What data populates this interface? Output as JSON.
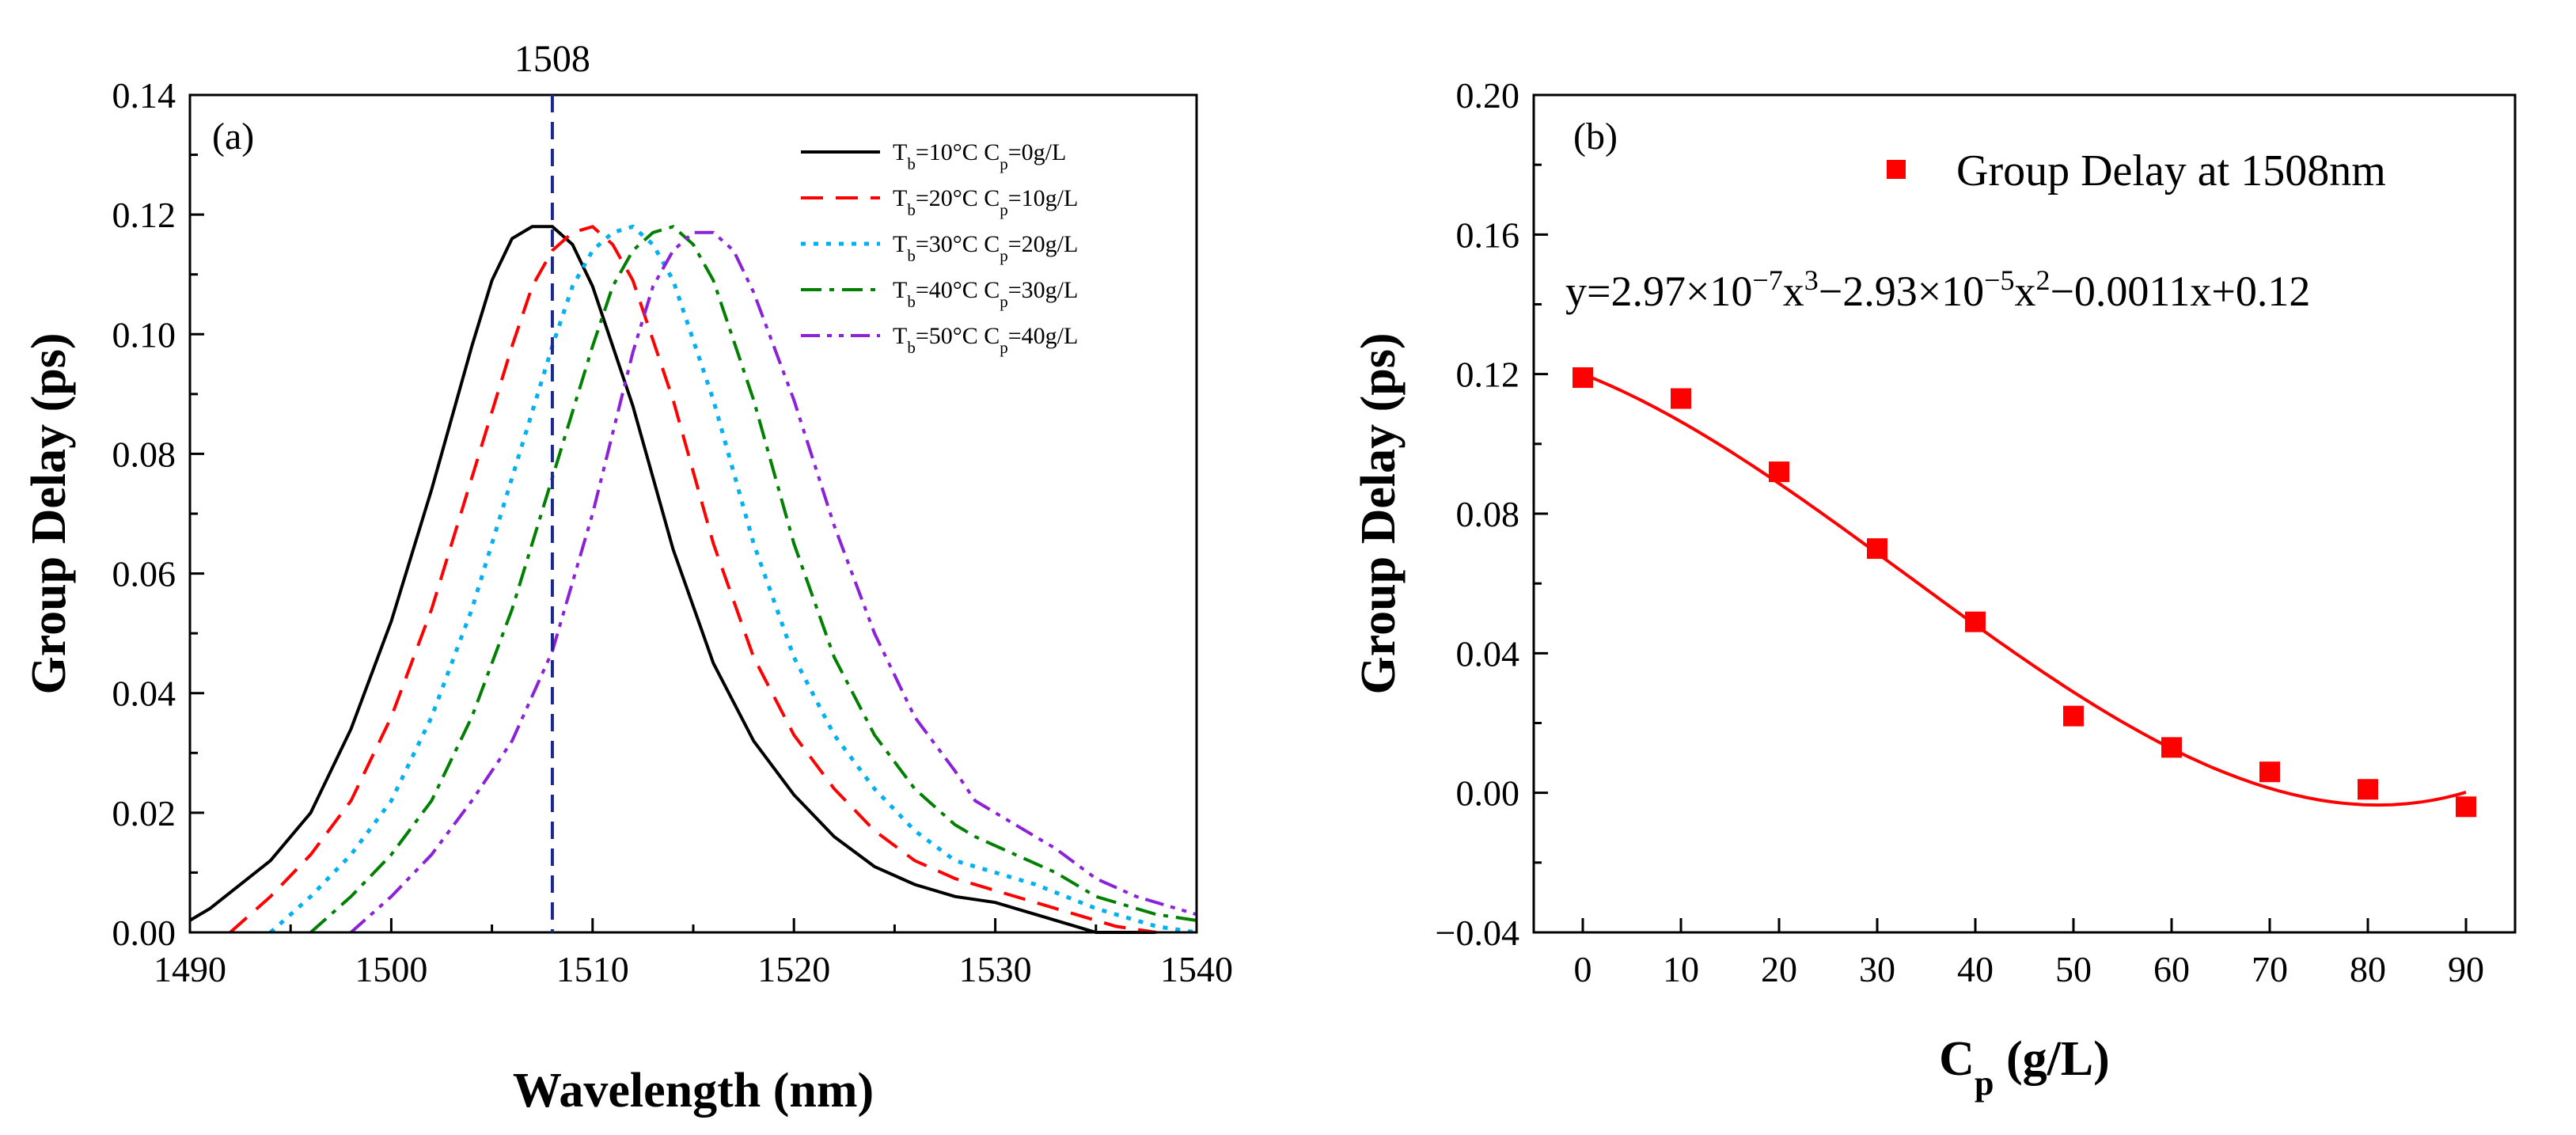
{
  "chart_data": [
    {
      "panel_label": "(a)",
      "type": "line",
      "xlabel": "Wavelength (nm)",
      "ylabel": "Group Delay (ps)",
      "xlim": [
        1490,
        1540
      ],
      "ylim": [
        0,
        0.14
      ],
      "xticks": [
        "1490",
        "1500",
        "1510",
        "1520",
        "1530",
        "1540"
      ],
      "yticks": [
        "0.00",
        "0.02",
        "0.04",
        "0.06",
        "0.08",
        "0.10",
        "0.12",
        "0.14"
      ],
      "annotation": {
        "label": "1508",
        "x": 1508
      },
      "legend_position": "top-right",
      "series": [
        {
          "name": "Tb=10°C  Cp=0g/L",
          "name_parts": [
            "T",
            "b",
            "=10°C  C",
            "p",
            "=0g/L"
          ],
          "color": "#000000",
          "dash": "solid",
          "x": [
            1490,
            1491,
            1494,
            1496,
            1498,
            1500,
            1502,
            1504,
            1505,
            1506,
            1507,
            1508,
            1509,
            1510,
            1512,
            1514,
            1516,
            1518,
            1520,
            1522,
            1524,
            1526,
            1528,
            1530,
            1532,
            1535,
            1538
          ],
          "y": [
            0.002,
            0.004,
            0.012,
            0.02,
            0.034,
            0.052,
            0.074,
            0.098,
            0.109,
            0.116,
            0.118,
            0.118,
            0.115,
            0.108,
            0.088,
            0.064,
            0.045,
            0.032,
            0.023,
            0.016,
            0.011,
            0.008,
            0.006,
            0.005,
            0.003,
            0.0,
            0.0
          ]
        },
        {
          "name": "Tb=20°C  Cp=10g/L",
          "name_parts": [
            "T",
            "b",
            "=20°C  C",
            "p",
            "=10g/L"
          ],
          "color": "#ff0000",
          "dash": "long-dash",
          "x": [
            1492,
            1494,
            1496,
            1498,
            1500,
            1502,
            1504,
            1506,
            1507,
            1508,
            1509,
            1510,
            1511,
            1512,
            1514,
            1516,
            1518,
            1520,
            1522,
            1524,
            1526,
            1528,
            1530,
            1533,
            1536,
            1538
          ],
          "y": [
            0.0,
            0.006,
            0.013,
            0.022,
            0.036,
            0.054,
            0.076,
            0.098,
            0.108,
            0.114,
            0.117,
            0.118,
            0.115,
            0.109,
            0.089,
            0.065,
            0.046,
            0.033,
            0.024,
            0.017,
            0.012,
            0.009,
            0.007,
            0.004,
            0.001,
            0.0
          ]
        },
        {
          "name": "Tb=30°C  Cp=20g/L",
          "name_parts": [
            "T",
            "b",
            "=30°C  C",
            "p",
            "=20g/L"
          ],
          "color": "#00b0f0",
          "dash": "dotted",
          "x": [
            1494,
            1496,
            1498,
            1500,
            1502,
            1504,
            1506,
            1508,
            1509,
            1510,
            1511,
            1512,
            1513,
            1514,
            1516,
            1518,
            1520,
            1522,
            1524,
            1526,
            1528,
            1530,
            1532,
            1535,
            1538,
            1540
          ],
          "y": [
            0.0,
            0.006,
            0.013,
            0.022,
            0.036,
            0.054,
            0.076,
            0.098,
            0.108,
            0.114,
            0.117,
            0.118,
            0.115,
            0.109,
            0.089,
            0.065,
            0.046,
            0.033,
            0.024,
            0.017,
            0.012,
            0.01,
            0.008,
            0.004,
            0.001,
            0.0
          ]
        },
        {
          "name": "Tb=40°C  Cp=30g/L",
          "name_parts": [
            "T",
            "b",
            "=40°C  C",
            "p",
            "=30g/L"
          ],
          "color": "#008000",
          "dash": "dash-dot",
          "x": [
            1496,
            1498,
            1500,
            1502,
            1504,
            1506,
            1508,
            1510,
            1511,
            1512,
            1513,
            1514,
            1515,
            1516,
            1518,
            1520,
            1522,
            1524,
            1526,
            1528,
            1529,
            1531,
            1533,
            1535,
            1538,
            1540
          ],
          "y": [
            0.0,
            0.006,
            0.013,
            0.022,
            0.036,
            0.054,
            0.076,
            0.098,
            0.108,
            0.114,
            0.117,
            0.118,
            0.115,
            0.109,
            0.089,
            0.065,
            0.046,
            0.033,
            0.024,
            0.018,
            0.016,
            0.013,
            0.01,
            0.006,
            0.003,
            0.002
          ]
        },
        {
          "name": "Tb=50°C  Cp=40g/L",
          "name_parts": [
            "T",
            "b",
            "=50°C  C",
            "p",
            "=40g/L"
          ],
          "color": "#8b22d8",
          "dash": "dash-dot-dot",
          "x": [
            1498,
            1500,
            1502,
            1504,
            1506,
            1508,
            1510,
            1512,
            1513,
            1514,
            1515,
            1516,
            1517,
            1518,
            1520,
            1522,
            1524,
            1526,
            1528,
            1529,
            1531,
            1533,
            1535,
            1537,
            1540
          ],
          "y": [
            0.0,
            0.006,
            0.013,
            0.022,
            0.032,
            0.047,
            0.07,
            0.097,
            0.108,
            0.114,
            0.117,
            0.117,
            0.114,
            0.107,
            0.089,
            0.068,
            0.05,
            0.036,
            0.027,
            0.022,
            0.018,
            0.014,
            0.009,
            0.006,
            0.003
          ]
        }
      ]
    },
    {
      "panel_label": "(b)",
      "type": "scatter",
      "xlabel": "Cp (g/L)",
      "xlabel_parts": [
        "C",
        "p",
        " (g/L)"
      ],
      "ylabel": "Group Delay (ps)",
      "xlim": [
        -5,
        95
      ],
      "ylim": [
        -0.04,
        0.2
      ],
      "xticks": [
        "0",
        "10",
        "20",
        "30",
        "40",
        "50",
        "60",
        "70",
        "80",
        "90"
      ],
      "yticks": [
        "−0.04",
        "0.00",
        "0.04",
        "0.08",
        "0.12",
        "0.16",
        "0.20"
      ],
      "legend_position": "top-right",
      "series": [
        {
          "name": "Group Delay at 1508nm",
          "color": "#ff0000",
          "marker": "square",
          "x": [
            0,
            10,
            20,
            30,
            40,
            50,
            60,
            70,
            80,
            90
          ],
          "y": [
            0.119,
            0.113,
            0.092,
            0.07,
            0.049,
            0.022,
            0.013,
            0.006,
            0.001,
            -0.004
          ]
        }
      ],
      "fit": {
        "equation": "y=2.97×10−7x3−2.93×10−5x2−0.0011x+0.12",
        "equation_parts": [
          "y=2.97×10",
          "−7",
          "x",
          "3",
          "−2.93×10",
          "−5",
          "x",
          "2",
          "−0.0011x+0.12"
        ],
        "coefficients": {
          "a3": 2.97e-07,
          "a2": -2.93e-05,
          "a1": -0.0011,
          "a0": 0.12
        },
        "color": "#ff0000"
      }
    }
  ]
}
